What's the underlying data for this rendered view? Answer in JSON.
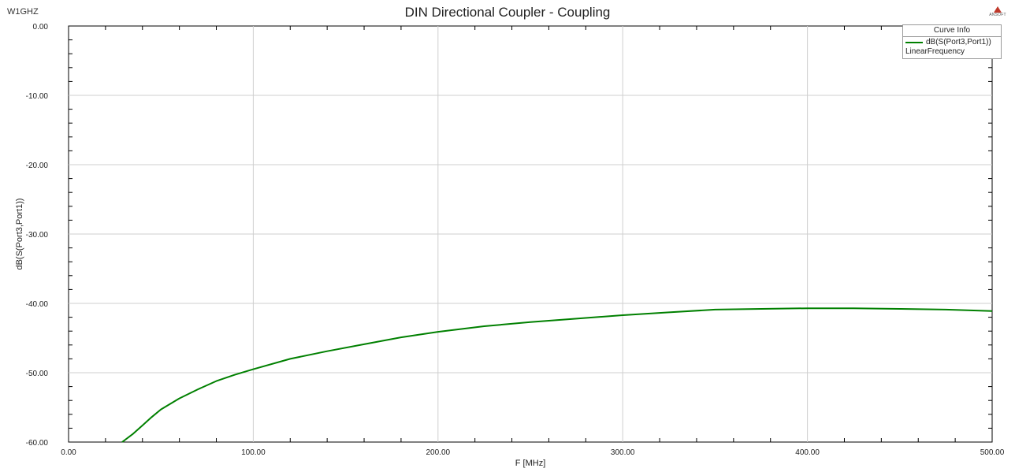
{
  "header": {
    "corner_label": "W1GHZ",
    "logo_text": "ANSOFT"
  },
  "legend": {
    "title": "Curve Info",
    "entries": [
      {
        "name": "dB(S(Port3,Port1))",
        "sub": "LinearFrequency",
        "color": "#008000"
      }
    ]
  },
  "chart_data": {
    "type": "line",
    "title": "DIN Directional Coupler - Coupling",
    "xlabel": "F [MHz]",
    "ylabel": "dB(S(Port3,Port1))",
    "xlim": [
      0,
      500
    ],
    "ylim": [
      -60,
      0
    ],
    "xticks": [
      "0.00",
      "100.00",
      "200.00",
      "300.00",
      "400.00",
      "500.00"
    ],
    "yticks": [
      "0.00",
      "-10.00",
      "-20.00",
      "-30.00",
      "-40.00",
      "-50.00",
      "-60.00"
    ],
    "grid": true,
    "legend_position": "top-right",
    "series": [
      {
        "name": "dB(S(Port3,Port1))",
        "color": "#008000",
        "x": [
          29,
          35,
          40,
          45,
          50,
          60,
          70,
          80,
          90,
          100,
          120,
          140,
          160,
          180,
          200,
          225,
          250,
          275,
          300,
          325,
          350,
          375,
          400,
          425,
          450,
          475,
          500
        ],
        "y": [
          -60.0,
          -58.8,
          -57.6,
          -56.4,
          -55.3,
          -53.7,
          -52.4,
          -51.2,
          -50.3,
          -49.5,
          -48.0,
          -46.9,
          -45.9,
          -44.9,
          -44.1,
          -43.3,
          -42.7,
          -42.2,
          -41.7,
          -41.3,
          -40.9,
          -40.8,
          -40.7,
          -40.7,
          -40.8,
          -40.9,
          -41.1
        ]
      }
    ]
  }
}
